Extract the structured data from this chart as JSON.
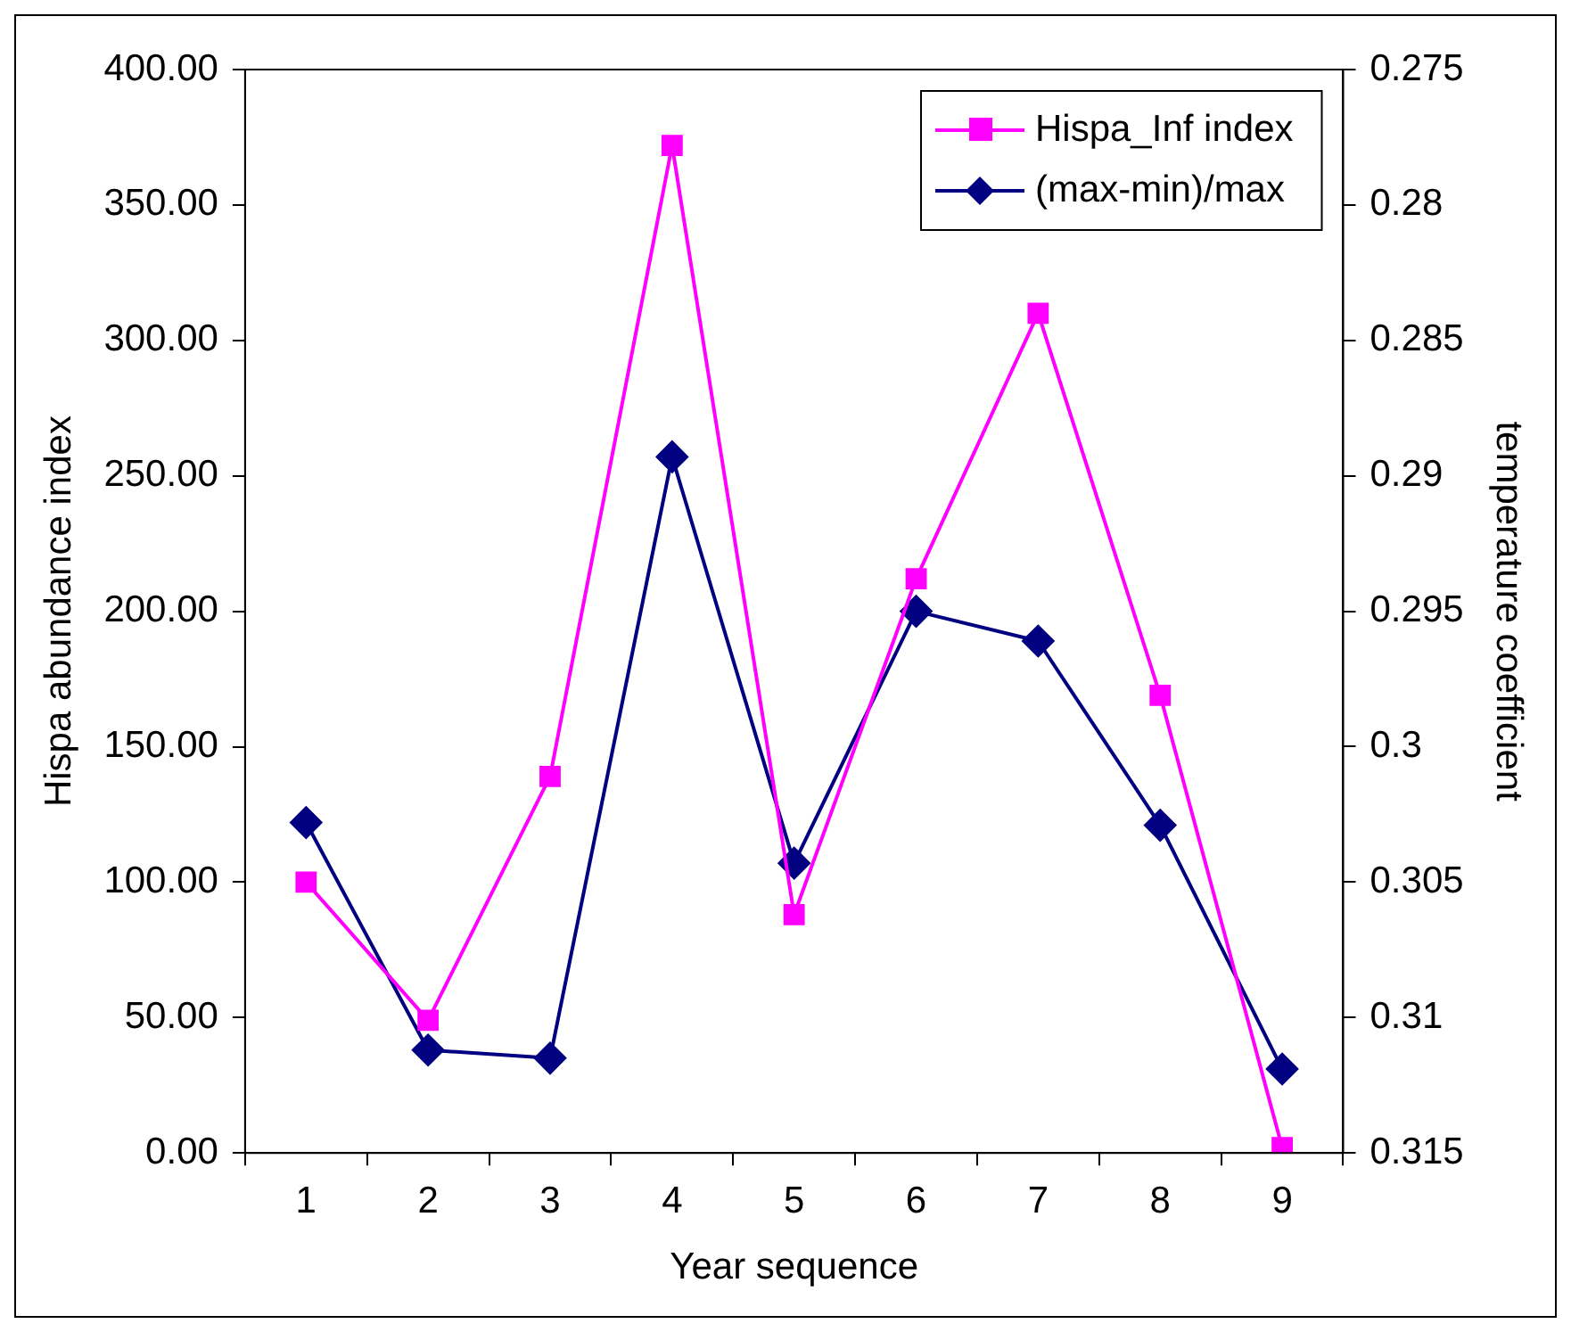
{
  "chart_data": {
    "type": "line",
    "xlabel": "Year sequence",
    "ylabel": "Hispa abundance index",
    "y2label": "temperature coefficient",
    "categories": [
      "1",
      "2",
      "3",
      "4",
      "5",
      "6",
      "7",
      "8",
      "9"
    ],
    "series": [
      {
        "name": "Hispa_Inf index",
        "color": "#ff00ff",
        "marker": "square",
        "values": [
          100,
          49,
          139,
          372,
          88,
          212,
          310,
          169,
          2
        ]
      },
      {
        "name": "(max-min)/max",
        "color": "#000080",
        "marker": "diamond",
        "axis": "y2",
        "values": [
          0.3028,
          0.3112,
          0.3115,
          0.2893,
          0.3043,
          0.295,
          0.2961,
          0.3029,
          0.3119
        ]
      }
    ],
    "ylim": [
      0,
      400
    ],
    "yticks": [
      {
        "value": 0,
        "label": "0.00"
      },
      {
        "value": 50,
        "label": "50.00"
      },
      {
        "value": 100,
        "label": "100.00"
      },
      {
        "value": 150,
        "label": "150.00"
      },
      {
        "value": 200,
        "label": "200.00"
      },
      {
        "value": 250,
        "label": "250.00"
      },
      {
        "value": 300,
        "label": "300.00"
      },
      {
        "value": 350,
        "label": "350.00"
      },
      {
        "value": 400,
        "label": "400.00"
      }
    ],
    "y2lim": [
      0.315,
      0.275
    ],
    "y2ticks": [
      0.275,
      0.28,
      0.285,
      0.29,
      0.295,
      0.3,
      0.305,
      0.31,
      0.315
    ],
    "grid": false,
    "legend": "top right",
    "line_style": "solid"
  }
}
